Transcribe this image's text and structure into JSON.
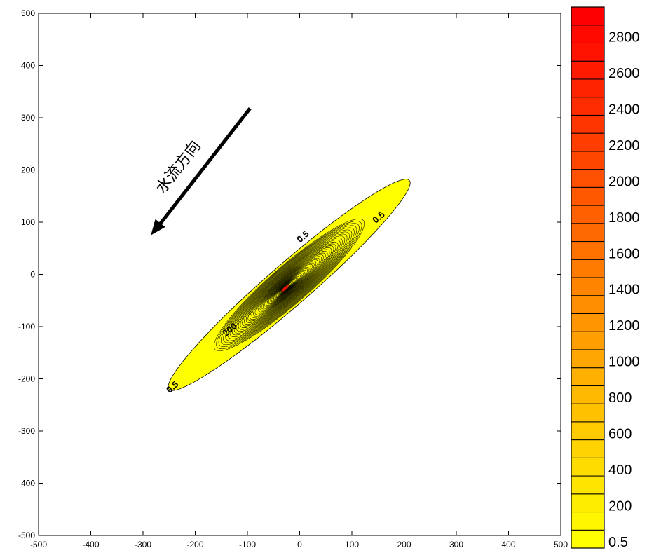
{
  "chart_data": {
    "type": "contour",
    "title": "",
    "xlabel": "",
    "ylabel": "",
    "xlim": [
      -500,
      500
    ],
    "ylim": [
      -500,
      500
    ],
    "x_ticks": [
      -500,
      -400,
      -300,
      -200,
      -100,
      0,
      100,
      200,
      300,
      400,
      500
    ],
    "y_ticks": [
      -500,
      -400,
      -300,
      -200,
      -100,
      0,
      100,
      200,
      300,
      400,
      500
    ],
    "plume": {
      "center": [
        -20,
        -20
      ],
      "orientation_deg": 41,
      "outer_semi_major": 305,
      "outer_semi_minor": 40,
      "peak_value": 2950
    },
    "contour_levels": [
      0.5,
      200,
      400,
      600,
      800,
      1000,
      1200,
      1400,
      1600,
      1800,
      2000,
      2200,
      2400,
      2600,
      2800
    ],
    "contour_labels": [
      {
        "text": "0.5",
        "x": -240,
        "y": -220
      },
      {
        "text": "0.5",
        "x": 10,
        "y": 68
      },
      {
        "text": "0.5",
        "x": 155,
        "y": 105
      },
      {
        "text": "200",
        "x": -130,
        "y": -110
      }
    ],
    "colorbar": {
      "min": 0.5,
      "max": 3000,
      "step": 100,
      "tick_labels": [
        "0.5",
        "200",
        "400",
        "600",
        "800",
        "1000",
        "1200",
        "1400",
        "1600",
        "1800",
        "2000",
        "2200",
        "2400",
        "2600",
        "2800"
      ],
      "color_low": "#FFFF00",
      "color_high": "#FF0000"
    },
    "annotation": {
      "text": "水流方向",
      "arrow_from": [
        -95,
        318
      ],
      "arrow_to": [
        -285,
        75
      ]
    },
    "grid": false,
    "legend": "colorbar-right"
  }
}
